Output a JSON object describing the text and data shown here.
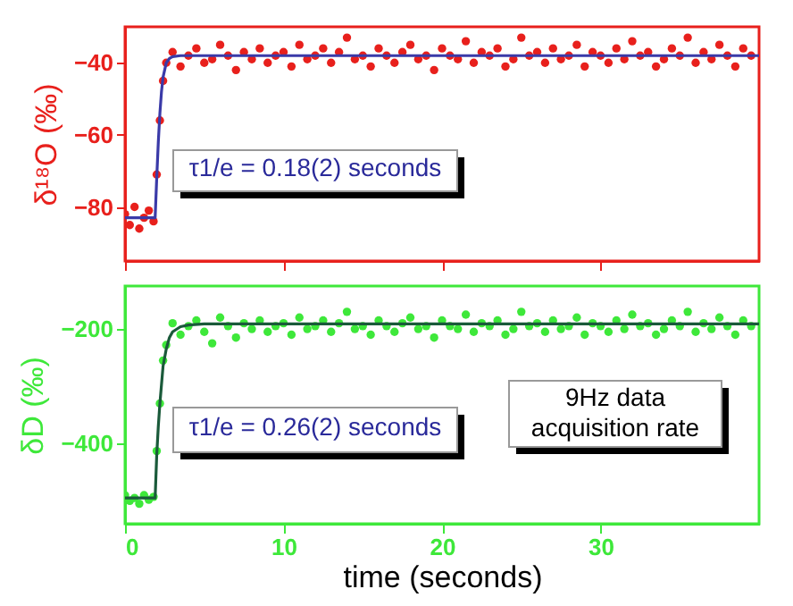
{
  "chart_data": [
    {
      "type": "scatter",
      "ylabel": "δ¹⁸O (‰)",
      "xlim": [
        0,
        40
      ],
      "xticks": [
        0,
        10,
        20,
        30
      ],
      "ylim": [
        -95,
        -30
      ],
      "yticks": [
        -80,
        -60,
        -40
      ],
      "tick_labels": "y",
      "annotations": [
        "τ1/e = 0.18(2) seconds"
      ],
      "series": [
        {
          "marker": "circle",
          "color": "#e8201c",
          "x": [
            0,
            0.3,
            0.6,
            0.9,
            1.2,
            1.5,
            1.8,
            2.0,
            2.2,
            2.4,
            2.6,
            3,
            3.5,
            4,
            4.5,
            5,
            5.5,
            6,
            6.5,
            7,
            7.5,
            8,
            8.5,
            9,
            9.5,
            10,
            10.5,
            11,
            11.5,
            12,
            12.5,
            13,
            13.5,
            14,
            14.5,
            15,
            15.5,
            16,
            16.5,
            17,
            17.5,
            18,
            18.5,
            19,
            19.5,
            20,
            20.5,
            21,
            21.5,
            22,
            22.5,
            23,
            23.5,
            24,
            24.5,
            25,
            25.5,
            26,
            26.5,
            27,
            27.5,
            28,
            28.5,
            29,
            29.5,
            30,
            30.5,
            31,
            31.5,
            32,
            32.5,
            33,
            33.5,
            34,
            34.5,
            35,
            35.5,
            36,
            36.5,
            37,
            37.5,
            38,
            38.5,
            39,
            39.5
          ],
          "values": [
            -82,
            -85,
            -80,
            -86,
            -83,
            -81,
            -84,
            -71,
            -56,
            -45,
            -40,
            -37,
            -41,
            -38,
            -36,
            -40,
            -39,
            -35,
            -38,
            -42,
            -37,
            -39,
            -36,
            -40,
            -38,
            -37,
            -41,
            -35,
            -39,
            -38,
            -36,
            -40,
            -37,
            -33,
            -39,
            -38,
            -41,
            -36,
            -38,
            -40,
            -37,
            -35,
            -39,
            -38,
            -42,
            -36,
            -38,
            -39,
            -34,
            -40,
            -37,
            -38,
            -36,
            -41,
            -39,
            -33,
            -38,
            -37,
            -40,
            -36,
            -39,
            -38,
            -35,
            -41,
            -37,
            -38,
            -40,
            -36,
            -39,
            -34,
            -38,
            -37,
            -41,
            -39,
            -36,
            -38,
            -33,
            -40,
            -37,
            -39,
            -35,
            -38,
            -41,
            -36,
            -38
          ]
        },
        {
          "type": "line",
          "color": "#3a3aa8",
          "x": [
            0,
            1.9,
            2.0,
            2.1,
            2.2,
            2.3,
            2.4,
            2.6,
            2.8,
            3.0,
            3.5,
            40
          ],
          "values": [
            -83,
            -83,
            -72,
            -62,
            -54,
            -48,
            -44,
            -40,
            -38.8,
            -38.3,
            -38,
            -38
          ]
        }
      ]
    },
    {
      "type": "scatter",
      "ylabel": "δD (‰)",
      "xlabel": "time (seconds)",
      "xlim": [
        0,
        40
      ],
      "xticks": [
        0,
        10,
        20,
        30
      ],
      "ylim": [
        -540,
        -125
      ],
      "yticks": [
        -400,
        -200
      ],
      "annotations": [
        "τ1/e = 0.26(2) seconds",
        "9Hz data acquisition rate"
      ],
      "series": [
        {
          "marker": "circle",
          "color": "#3ee83a",
          "x": [
            0,
            0.3,
            0.6,
            0.9,
            1.2,
            1.5,
            1.8,
            2.0,
            2.2,
            2.4,
            2.6,
            3,
            3.5,
            4,
            4.5,
            5,
            5.5,
            6,
            6.5,
            7,
            7.5,
            8,
            8.5,
            9,
            9.5,
            10,
            10.5,
            11,
            11.5,
            12,
            12.5,
            13,
            13.5,
            14,
            14.5,
            15,
            15.5,
            16,
            16.5,
            17,
            17.5,
            18,
            18.5,
            19,
            19.5,
            20,
            20.5,
            21,
            21.5,
            22,
            22.5,
            23,
            23.5,
            24,
            24.5,
            25,
            25.5,
            26,
            26.5,
            27,
            27.5,
            28,
            28.5,
            29,
            29.5,
            30,
            30.5,
            31,
            31.5,
            32,
            32.5,
            33,
            33.5,
            34,
            34.5,
            35,
            35.5,
            36,
            36.5,
            37,
            37.5,
            38,
            38.5,
            39,
            39.5
          ],
          "values": [
            -490,
            -500,
            -495,
            -505,
            -490,
            -498,
            -493,
            -413,
            -330,
            -255,
            -228,
            -190,
            -210,
            -195,
            -185,
            -205,
            -225,
            -180,
            -195,
            -215,
            -190,
            -200,
            -185,
            -205,
            -195,
            -190,
            -210,
            -180,
            -200,
            -195,
            -185,
            -205,
            -190,
            -170,
            -200,
            -195,
            -210,
            -185,
            -195,
            -205,
            -190,
            -180,
            -200,
            -195,
            -215,
            -185,
            -195,
            -200,
            -175,
            -205,
            -190,
            -195,
            -185,
            -210,
            -200,
            -170,
            -195,
            -190,
            -205,
            -185,
            -200,
            -195,
            -180,
            -210,
            -190,
            -195,
            -205,
            -185,
            -200,
            -175,
            -195,
            -190,
            -210,
            -200,
            -185,
            -195,
            -170,
            -205,
            -190,
            -200,
            -180,
            -195,
            -210,
            -185,
            -195
          ]
        },
        {
          "type": "line",
          "color": "#1a5a3a",
          "x": [
            0,
            1.9,
            2.0,
            2.1,
            2.2,
            2.4,
            2.6,
            2.8,
            3.0,
            3.5,
            4,
            5,
            40
          ],
          "values": [
            -495,
            -495,
            -420,
            -370,
            -330,
            -265,
            -235,
            -215,
            -205,
            -196,
            -193,
            -191,
            -191
          ]
        }
      ]
    }
  ]
}
